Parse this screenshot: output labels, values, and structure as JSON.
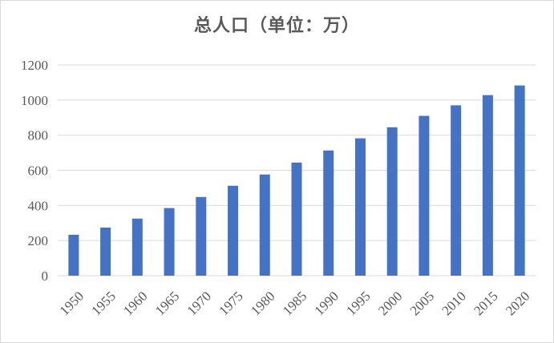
{
  "chart_data": {
    "type": "bar",
    "title": "总人口（单位：万）",
    "xlabel": "",
    "ylabel": "",
    "categories": [
      "1950",
      "1955",
      "1960",
      "1965",
      "1970",
      "1975",
      "1980",
      "1985",
      "1990",
      "1995",
      "2000",
      "2005",
      "2010",
      "2015",
      "2020"
    ],
    "values": [
      233,
      274,
      325,
      385,
      448,
      512,
      576,
      644,
      713,
      782,
      845,
      910,
      970,
      1028,
      1083
    ],
    "ylim": [
      0,
      1200
    ],
    "yticks": [
      "0",
      "200",
      "400",
      "600",
      "800",
      "1000",
      "1200"
    ],
    "grid": true,
    "legend": "none",
    "bar_color": "#4472C4",
    "grid_color": "#d9d9d9"
  }
}
